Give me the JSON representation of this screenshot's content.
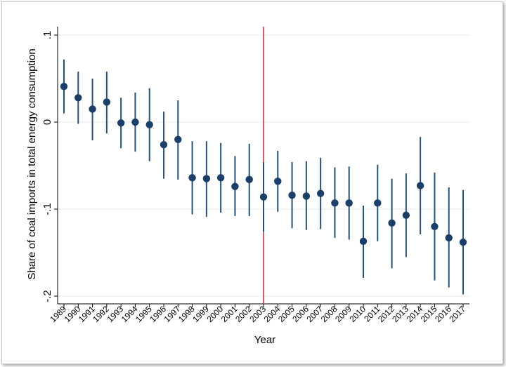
{
  "chart_data": {
    "type": "scatter",
    "xlabel": "Year",
    "ylabel": "Share of coal imports in total energy consumption",
    "ylim": [
      -0.2,
      0.1
    ],
    "yticks": [
      {
        "value": 0.1,
        "label": ".1"
      },
      {
        "value": 0,
        "label": "0"
      },
      {
        "value": -0.1,
        "label": "-.1"
      },
      {
        "value": -0.2,
        "label": "-.2"
      }
    ],
    "grid": true,
    "reference_line": {
      "x": "2003",
      "color": "#d62728"
    },
    "colors": {
      "marker": "#1a3f6a",
      "ci": "#24507f",
      "grid": "#e8e8e8"
    },
    "categories": [
      "1989",
      "1990",
      "1991",
      "1992",
      "1993",
      "1994",
      "1995",
      "1996",
      "1997",
      "1998",
      "1999",
      "2000",
      "2001",
      "2002",
      "2003",
      "2004",
      "2005",
      "2006",
      "2007",
      "2008",
      "2009",
      "2010",
      "2011",
      "2012",
      "2013",
      "2014",
      "2015",
      "2016",
      "2017"
    ],
    "points": [
      {
        "x": "1989",
        "y": 0.041,
        "lo": 0.01,
        "hi": 0.072
      },
      {
        "x": "1990",
        "y": 0.028,
        "lo": -0.002,
        "hi": 0.058
      },
      {
        "x": "1991",
        "y": 0.015,
        "lo": -0.021,
        "hi": 0.05
      },
      {
        "x": "1992",
        "y": 0.023,
        "lo": -0.013,
        "hi": 0.058
      },
      {
        "x": "1993",
        "y": -0.001,
        "lo": -0.03,
        "hi": 0.028
      },
      {
        "x": "1994",
        "y": 0.0,
        "lo": -0.034,
        "hi": 0.034
      },
      {
        "x": "1995",
        "y": -0.003,
        "lo": -0.045,
        "hi": 0.039
      },
      {
        "x": "1996",
        "y": -0.026,
        "lo": -0.065,
        "hi": 0.012
      },
      {
        "x": "1997",
        "y": -0.02,
        "lo": -0.066,
        "hi": 0.025
      },
      {
        "x": "1998",
        "y": -0.064,
        "lo": -0.106,
        "hi": -0.022
      },
      {
        "x": "1999",
        "y": -0.065,
        "lo": -0.109,
        "hi": -0.022
      },
      {
        "x": "2000",
        "y": -0.064,
        "lo": -0.104,
        "hi": -0.024
      },
      {
        "x": "2001",
        "y": -0.074,
        "lo": -0.108,
        "hi": -0.039
      },
      {
        "x": "2002",
        "y": -0.066,
        "lo": -0.108,
        "hi": -0.025
      },
      {
        "x": "2003",
        "y": -0.086,
        "lo": -0.126,
        "hi": -0.046
      },
      {
        "x": "2004",
        "y": -0.068,
        "lo": -0.103,
        "hi": -0.033
      },
      {
        "x": "2005",
        "y": -0.084,
        "lo": -0.122,
        "hi": -0.046
      },
      {
        "x": "2006",
        "y": -0.085,
        "lo": -0.124,
        "hi": -0.045
      },
      {
        "x": "2007",
        "y": -0.082,
        "lo": -0.123,
        "hi": -0.041
      },
      {
        "x": "2008",
        "y": -0.093,
        "lo": -0.133,
        "hi": -0.052
      },
      {
        "x": "2009",
        "y": -0.093,
        "lo": -0.135,
        "hi": -0.051
      },
      {
        "x": "2010",
        "y": -0.137,
        "lo": -0.179,
        "hi": -0.096
      },
      {
        "x": "2011",
        "y": -0.093,
        "lo": -0.137,
        "hi": -0.049
      },
      {
        "x": "2012",
        "y": -0.116,
        "lo": -0.168,
        "hi": -0.065
      },
      {
        "x": "2013",
        "y": -0.107,
        "lo": -0.155,
        "hi": -0.059
      },
      {
        "x": "2014",
        "y": -0.073,
        "lo": -0.129,
        "hi": -0.017
      },
      {
        "x": "2015",
        "y": -0.12,
        "lo": -0.182,
        "hi": -0.058
      },
      {
        "x": "2016",
        "y": -0.133,
        "lo": -0.19,
        "hi": -0.075
      },
      {
        "x": "2017",
        "y": -0.138,
        "lo": -0.198,
        "hi": -0.078
      }
    ]
  }
}
